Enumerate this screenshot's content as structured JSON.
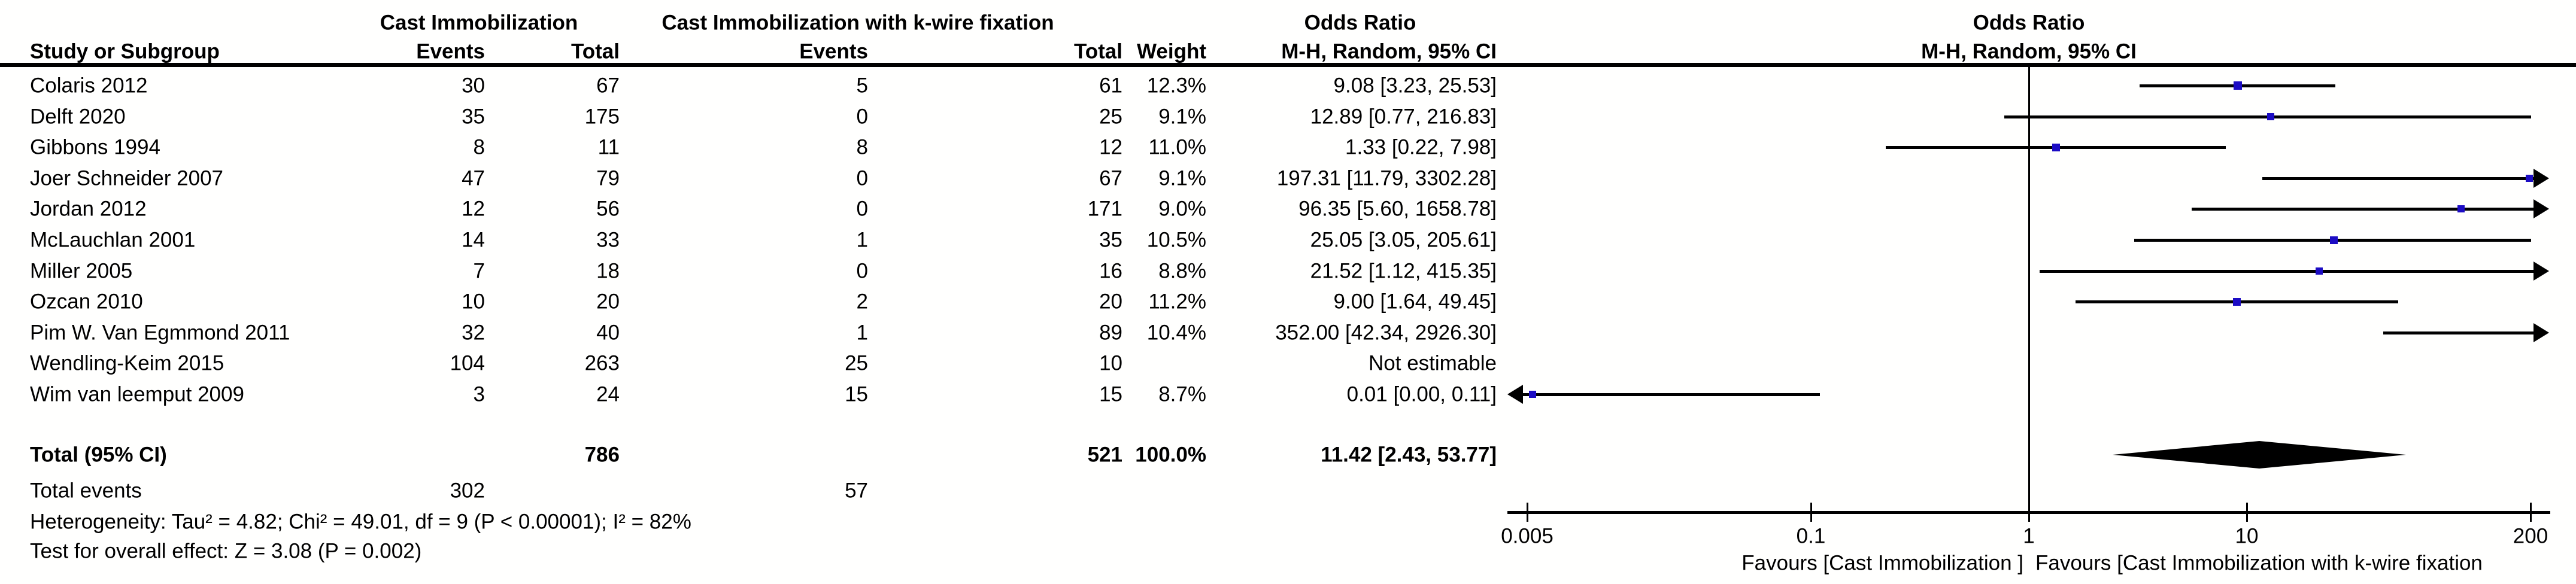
{
  "header": {
    "group_cast": "Cast Immobilization",
    "group_kwire": "Cast Immobilization with k-wire fixation",
    "col_study": "Study or Subgroup",
    "col_events": "Events",
    "col_total": "Total",
    "col_weight": "Weight",
    "or_title": "Odds Ratio",
    "or_subtitle": "M-H, Random, 95% CI",
    "plot_title": "Odds Ratio",
    "plot_subtitle": "M-H, Random, 95% CI"
  },
  "colors": {
    "marker_blue": "#1c0cc4",
    "line_black": "#000000"
  },
  "chart_data": {
    "type": "forest",
    "effect_measure": "Odds Ratio",
    "method": "M-H, Random, 95% CI",
    "x_scale": "log",
    "x_range": [
      0.005,
      200
    ],
    "x_ticks": [
      0.005,
      0.1,
      1,
      10,
      200
    ],
    "x_tick_labels": [
      "0.005",
      "0.1",
      "1",
      "10",
      "200"
    ],
    "favours_left": "Favours [Cast Immobilization ]",
    "favours_right": "Favours [Cast Immobilization with k-wire fixation",
    "studies": [
      {
        "name": "Colaris 2012",
        "e1": "30",
        "t1": "67",
        "e2": "5",
        "t2": "61",
        "weight": "12.3%",
        "w": 12.3,
        "or_label": "9.08 [3.23, 25.53]",
        "or": 9.08,
        "lo": 3.23,
        "hi": 25.53,
        "arrow_low": false,
        "arrow_high": false
      },
      {
        "name": "Delft 2020",
        "e1": "35",
        "t1": "175",
        "e2": "0",
        "t2": "25",
        "weight": "9.1%",
        "w": 9.1,
        "or_label": "12.89 [0.77, 216.83]",
        "or": 12.89,
        "lo": 0.77,
        "hi": 216.83,
        "arrow_low": false,
        "arrow_high": false
      },
      {
        "name": "Gibbons 1994",
        "e1": "8",
        "t1": "11",
        "e2": "8",
        "t2": "12",
        "weight": "11.0%",
        "w": 11.0,
        "or_label": "1.33 [0.22, 7.98]",
        "or": 1.33,
        "lo": 0.22,
        "hi": 7.98,
        "arrow_low": false,
        "arrow_high": false
      },
      {
        "name": "Joer Schneider 2007",
        "e1": "47",
        "t1": "79",
        "e2": "0",
        "t2": "67",
        "weight": "9.1%",
        "w": 9.1,
        "or_label": "197.31 [11.79, 3302.28]",
        "or": 197.31,
        "lo": 11.79,
        "hi": 3302.28,
        "arrow_low": false,
        "arrow_high": true
      },
      {
        "name": "Jordan 2012",
        "e1": "12",
        "t1": "56",
        "e2": "0",
        "t2": "171",
        "weight": "9.0%",
        "w": 9.0,
        "or_label": "96.35 [5.60, 1658.78]",
        "or": 96.35,
        "lo": 5.6,
        "hi": 1658.78,
        "arrow_low": false,
        "arrow_high": true
      },
      {
        "name": "McLauchlan 2001",
        "e1": "14",
        "t1": "33",
        "e2": "1",
        "t2": "35",
        "weight": "10.5%",
        "w": 10.5,
        "or_label": "25.05 [3.05, 205.61]",
        "or": 25.05,
        "lo": 3.05,
        "hi": 205.61,
        "arrow_low": false,
        "arrow_high": false
      },
      {
        "name": "Miller 2005",
        "e1": "7",
        "t1": "18",
        "e2": "0",
        "t2": "16",
        "weight": "8.8%",
        "w": 8.8,
        "or_label": "21.52 [1.12, 415.35]",
        "or": 21.52,
        "lo": 1.12,
        "hi": 415.35,
        "arrow_low": false,
        "arrow_high": true
      },
      {
        "name": "Ozcan 2010",
        "e1": "10",
        "t1": "20",
        "e2": "2",
        "t2": "20",
        "weight": "11.2%",
        "w": 11.2,
        "or_label": "9.00 [1.64, 49.45]",
        "or": 9.0,
        "lo": 1.64,
        "hi": 49.45,
        "arrow_low": false,
        "arrow_high": false
      },
      {
        "name": "Pim W. Van Egmmond 2011",
        "e1": "32",
        "t1": "40",
        "e2": "1",
        "t2": "89",
        "weight": "10.4%",
        "w": 10.4,
        "or_label": "352.00 [42.34, 2926.30]",
        "or": 352.0,
        "lo": 42.34,
        "hi": 2926.3,
        "arrow_low": false,
        "arrow_high": true
      },
      {
        "name": "Wendling-Keim 2015",
        "e1": "104",
        "t1": "263",
        "e2": "25",
        "t2": "10",
        "weight": "",
        "w": null,
        "or_label": "Not estimable",
        "or": null,
        "lo": null,
        "hi": null,
        "arrow_low": false,
        "arrow_high": false
      },
      {
        "name": "Wim van leemput 2009",
        "e1": "3",
        "t1": "24",
        "e2": "15",
        "t2": "15",
        "weight": "8.7%",
        "w": 8.7,
        "or_label": "0.01 [0.00, 0.11]",
        "or": 0.01,
        "or_plot": 0.0053,
        "lo": null,
        "hi": 0.11,
        "arrow_low": true,
        "arrow_high": false
      }
    ],
    "total": {
      "label": "Total (95% CI)",
      "t1": "786",
      "t2": "521",
      "weight": "100.0%",
      "or_label": "11.42 [2.43, 53.77]",
      "or": 11.42,
      "lo": 2.43,
      "hi": 53.77
    },
    "total_events": {
      "label": "Total events",
      "e1": "302",
      "e2": "57"
    },
    "heterogeneity": "Heterogeneity: Tau² = 4.82; Chi² = 49.01, df = 9 (P < 0.00001); I² = 82%",
    "overall_effect": "Test for overall effect: Z = 3.08 (P = 0.002)"
  }
}
